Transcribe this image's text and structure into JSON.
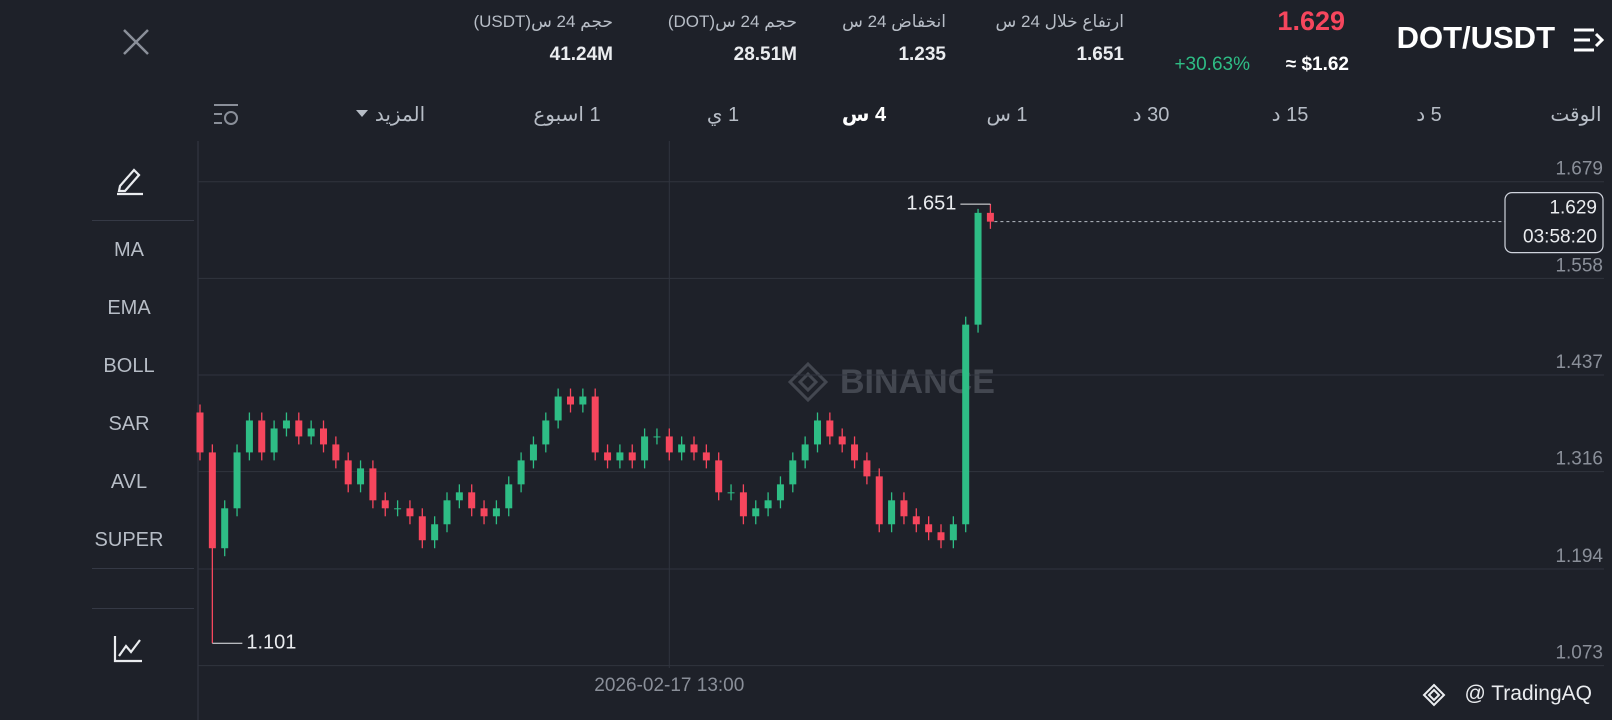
{
  "header": {
    "pair": "DOT/USDT",
    "price": "1.629",
    "change": "+30.63%",
    "price_usd": "≈ $1.62",
    "stats": [
      {
        "label": "ارتفاع خلال 24 س",
        "value": "1.651"
      },
      {
        "label": "انخفاض 24 س",
        "value": "1.235"
      },
      {
        "label": "حجم 24 س(DOT)",
        "value": "28.51M"
      },
      {
        "label": "حجم 24 س(USDT)",
        "value": "41.24M"
      }
    ]
  },
  "intervals": [
    "الوقت",
    "5 د",
    "15 د",
    "30 د",
    "1 س",
    "4 س",
    "1 ي",
    "1 اسبوع",
    "المزيد"
  ],
  "indicators": [
    "MA",
    "EMA",
    "BOLL",
    "SAR",
    "AVL",
    "SUPER"
  ],
  "watermark": "BINANCE",
  "footer": "@ TradingAQ",
  "chart_data": {
    "type": "candlestick",
    "categories": [
      null,
      null,
      null,
      null,
      null,
      null,
      null,
      null,
      null,
      null,
      null,
      null,
      null,
      null,
      null,
      null,
      null,
      null,
      null,
      null,
      null,
      null,
      null,
      null,
      null,
      null,
      null,
      null,
      null,
      null,
      null,
      null,
      null,
      null,
      null,
      null,
      null,
      null,
      "2026-02-17 13:00",
      null,
      null,
      null,
      null,
      null,
      null,
      null,
      null,
      null,
      null,
      null,
      null,
      null,
      null,
      null,
      null,
      null,
      null,
      null,
      null,
      null,
      null,
      null,
      null,
      null,
      null
    ],
    "open": [
      1.39,
      1.34,
      1.22,
      1.27,
      1.34,
      1.38,
      1.34,
      1.37,
      1.38,
      1.36,
      1.37,
      1.35,
      1.33,
      1.3,
      1.32,
      1.28,
      1.27,
      1.27,
      1.26,
      1.23,
      1.25,
      1.28,
      1.29,
      1.27,
      1.26,
      1.27,
      1.3,
      1.33,
      1.35,
      1.38,
      1.41,
      1.4,
      1.41,
      1.34,
      1.33,
      1.34,
      1.33,
      1.36,
      1.36,
      1.34,
      1.35,
      1.34,
      1.33,
      1.29,
      1.29,
      1.26,
      1.27,
      1.28,
      1.3,
      1.33,
      1.35,
      1.38,
      1.36,
      1.35,
      1.33,
      1.31,
      1.25,
      1.28,
      1.26,
      1.25,
      1.24,
      1.23,
      1.25,
      1.5,
      1.64
    ],
    "high": [
      1.4,
      1.35,
      1.28,
      1.35,
      1.39,
      1.39,
      1.38,
      1.39,
      1.39,
      1.38,
      1.38,
      1.36,
      1.34,
      1.33,
      1.33,
      1.29,
      1.28,
      1.28,
      1.27,
      1.26,
      1.29,
      1.3,
      1.3,
      1.28,
      1.28,
      1.31,
      1.34,
      1.36,
      1.39,
      1.42,
      1.42,
      1.42,
      1.42,
      1.35,
      1.35,
      1.35,
      1.37,
      1.37,
      1.37,
      1.36,
      1.36,
      1.35,
      1.34,
      1.3,
      1.3,
      1.28,
      1.29,
      1.31,
      1.34,
      1.36,
      1.39,
      1.39,
      1.37,
      1.36,
      1.34,
      1.32,
      1.29,
      1.29,
      1.27,
      1.26,
      1.25,
      1.26,
      1.51,
      1.645,
      1.651
    ],
    "low": [
      1.33,
      1.101,
      1.21,
      1.26,
      1.33,
      1.33,
      1.33,
      1.36,
      1.35,
      1.35,
      1.34,
      1.32,
      1.29,
      1.29,
      1.27,
      1.26,
      1.26,
      1.25,
      1.22,
      1.22,
      1.24,
      1.27,
      1.26,
      1.25,
      1.25,
      1.26,
      1.29,
      1.32,
      1.34,
      1.37,
      1.39,
      1.39,
      1.33,
      1.32,
      1.32,
      1.32,
      1.32,
      1.35,
      1.33,
      1.33,
      1.33,
      1.32,
      1.28,
      1.28,
      1.25,
      1.25,
      1.26,
      1.27,
      1.29,
      1.32,
      1.34,
      1.35,
      1.34,
      1.32,
      1.3,
      1.24,
      1.24,
      1.25,
      1.24,
      1.23,
      1.22,
      1.22,
      1.24,
      1.49,
      1.62
    ],
    "close": [
      1.34,
      1.22,
      1.27,
      1.34,
      1.38,
      1.34,
      1.37,
      1.38,
      1.36,
      1.37,
      1.35,
      1.33,
      1.3,
      1.32,
      1.28,
      1.27,
      1.27,
      1.26,
      1.23,
      1.25,
      1.28,
      1.29,
      1.27,
      1.26,
      1.27,
      1.3,
      1.33,
      1.35,
      1.38,
      1.41,
      1.4,
      1.41,
      1.34,
      1.33,
      1.34,
      1.33,
      1.36,
      1.36,
      1.34,
      1.35,
      1.34,
      1.33,
      1.29,
      1.29,
      1.26,
      1.27,
      1.28,
      1.3,
      1.33,
      1.35,
      1.38,
      1.36,
      1.35,
      1.33,
      1.31,
      1.25,
      1.28,
      1.26,
      1.25,
      1.24,
      1.23,
      1.25,
      1.5,
      1.64,
      1.629
    ],
    "up_color": "#2ebd85",
    "down_color": "#f6465d",
    "ylim": [
      1.07,
      1.73
    ],
    "yticks": [
      1.679,
      1.558,
      1.437,
      1.316,
      1.194,
      1.073
    ],
    "grid": true,
    "countdown": "03:58:20"
  }
}
